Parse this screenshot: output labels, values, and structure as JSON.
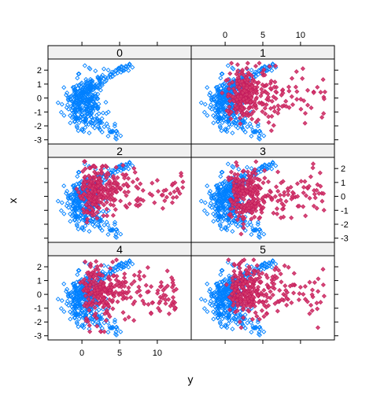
{
  "colors": {
    "background": "#ffffff",
    "strip_fill": "#f0f0f0",
    "reference_series": "#0080ff",
    "panel_series": "#c2185b",
    "panel_series_fill": "#d23a6a"
  },
  "chart_data": {
    "type": "scatter",
    "layout": "trellis 2 columns x 3 rows",
    "xlabel": "y",
    "ylabel": "x",
    "xlim": [
      -4.5,
      14.5
    ],
    "ylim": [
      -3.3,
      2.8
    ],
    "x_ticks": [
      0,
      5,
      10
    ],
    "y_ticks": [
      -3,
      -2,
      -1,
      0,
      1,
      2
    ],
    "grid": false,
    "legend": "none",
    "reference_series": {
      "marker": "open-diamond",
      "color": "#0080ff",
      "shape": "horseshoe cloud, dense near y 0..2, upper arm rising to y≈6.5 at x≈2.5, lower arm to y≈5 at x≈-2.5",
      "x_center": 0.2,
      "x_spread": 1.5,
      "y_center": -0.2,
      "y_spread": 0.9,
      "x_range": [
        -3.5,
        6.7
      ],
      "y_range": [
        -3.0,
        2.5
      ],
      "n_points": 420
    },
    "panels": [
      {
        "label": "0",
        "has_overlay": false
      },
      {
        "label": "1",
        "has_overlay": true,
        "overlay": {
          "marker": "filled-diamond",
          "x_center": 2.0,
          "x_spread": 2.6,
          "y_center": 0.2,
          "y_spread": 0.95,
          "x_max": 13.3,
          "n_points": 300
        }
      },
      {
        "label": "2",
        "has_overlay": true,
        "overlay": {
          "marker": "filled-diamond",
          "x_center": 1.3,
          "x_spread": 2.3,
          "y_center": 0.5,
          "y_spread": 0.85,
          "x_max": 13.5,
          "n_points": 300
        }
      },
      {
        "label": "3",
        "has_overlay": true,
        "overlay": {
          "marker": "filled-diamond",
          "x_center": 2.0,
          "x_spread": 2.5,
          "y_center": 0.1,
          "y_spread": 0.9,
          "x_max": 13.2,
          "n_points": 300
        }
      },
      {
        "label": "4",
        "has_overlay": true,
        "overlay": {
          "marker": "filled-diamond",
          "x_center": 1.6,
          "x_spread": 2.4,
          "y_center": 0.1,
          "y_spread": 0.95,
          "x_max": 12.6,
          "n_points": 300
        }
      },
      {
        "label": "5",
        "has_overlay": true,
        "overlay": {
          "marker": "filled-diamond",
          "x_center": 2.2,
          "x_spread": 2.6,
          "y_center": 0.3,
          "y_spread": 0.9,
          "x_max": 13.5,
          "n_points": 300
        }
      }
    ]
  }
}
